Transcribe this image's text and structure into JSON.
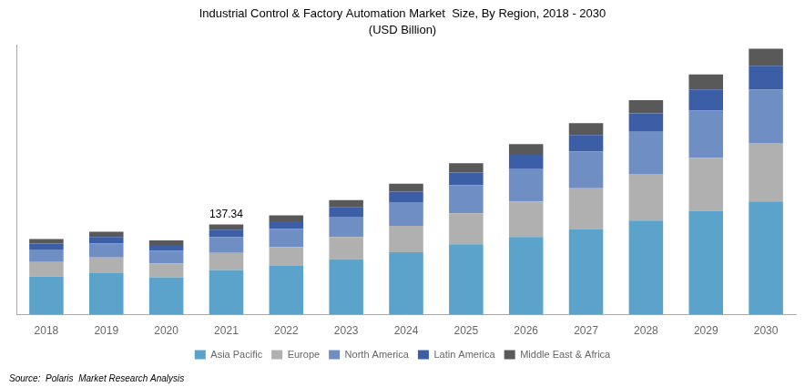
{
  "chart_data": {
    "type": "bar",
    "title": "Industrial Control & Factory Automation Market  Size, By Region, 2018 - 2030",
    "subtitle": "(USD Billion)",
    "source": "Source:  Polaris  Market Research Analysis",
    "categories": [
      "2018",
      "2019",
      "2020",
      "2021",
      "2022",
      "2023",
      "2024",
      "2025",
      "2026",
      "2027",
      "2028",
      "2029",
      "2030"
    ],
    "series": [
      {
        "name": "Asia Pacific",
        "color": "#5BA3CB",
        "values": [
          58,
          63,
          57,
          68,
          74,
          84,
          95,
          107,
          118,
          130,
          143,
          158,
          172
        ]
      },
      {
        "name": "Europe",
        "color": "#B0B0B0",
        "values": [
          22,
          24,
          21,
          26,
          29,
          34,
          40,
          47,
          54,
          62,
          71,
          80,
          89
        ]
      },
      {
        "name": "North America",
        "color": "#6F8FC4",
        "values": [
          19,
          21,
          19,
          24,
          27,
          31,
          36,
          43,
          49,
          56,
          64,
          72,
          81
        ]
      },
      {
        "name": "Latin America",
        "color": "#3B5EA6",
        "values": [
          9,
          10,
          9,
          11,
          12,
          14,
          16,
          19,
          22,
          25,
          28,
          32,
          36
        ]
      },
      {
        "name": "Middle East & Africa",
        "color": "#595959",
        "values": [
          7,
          8,
          7,
          8,
          9,
          11,
          12,
          14,
          16,
          18,
          20,
          23,
          26
        ]
      }
    ],
    "annotations": [
      {
        "category": "2021",
        "text": "137.34"
      }
    ],
    "ylim": [
      0,
      410
    ],
    "stacked": true,
    "grid": false,
    "legend": "bottom",
    "tick_labels": "x"
  }
}
